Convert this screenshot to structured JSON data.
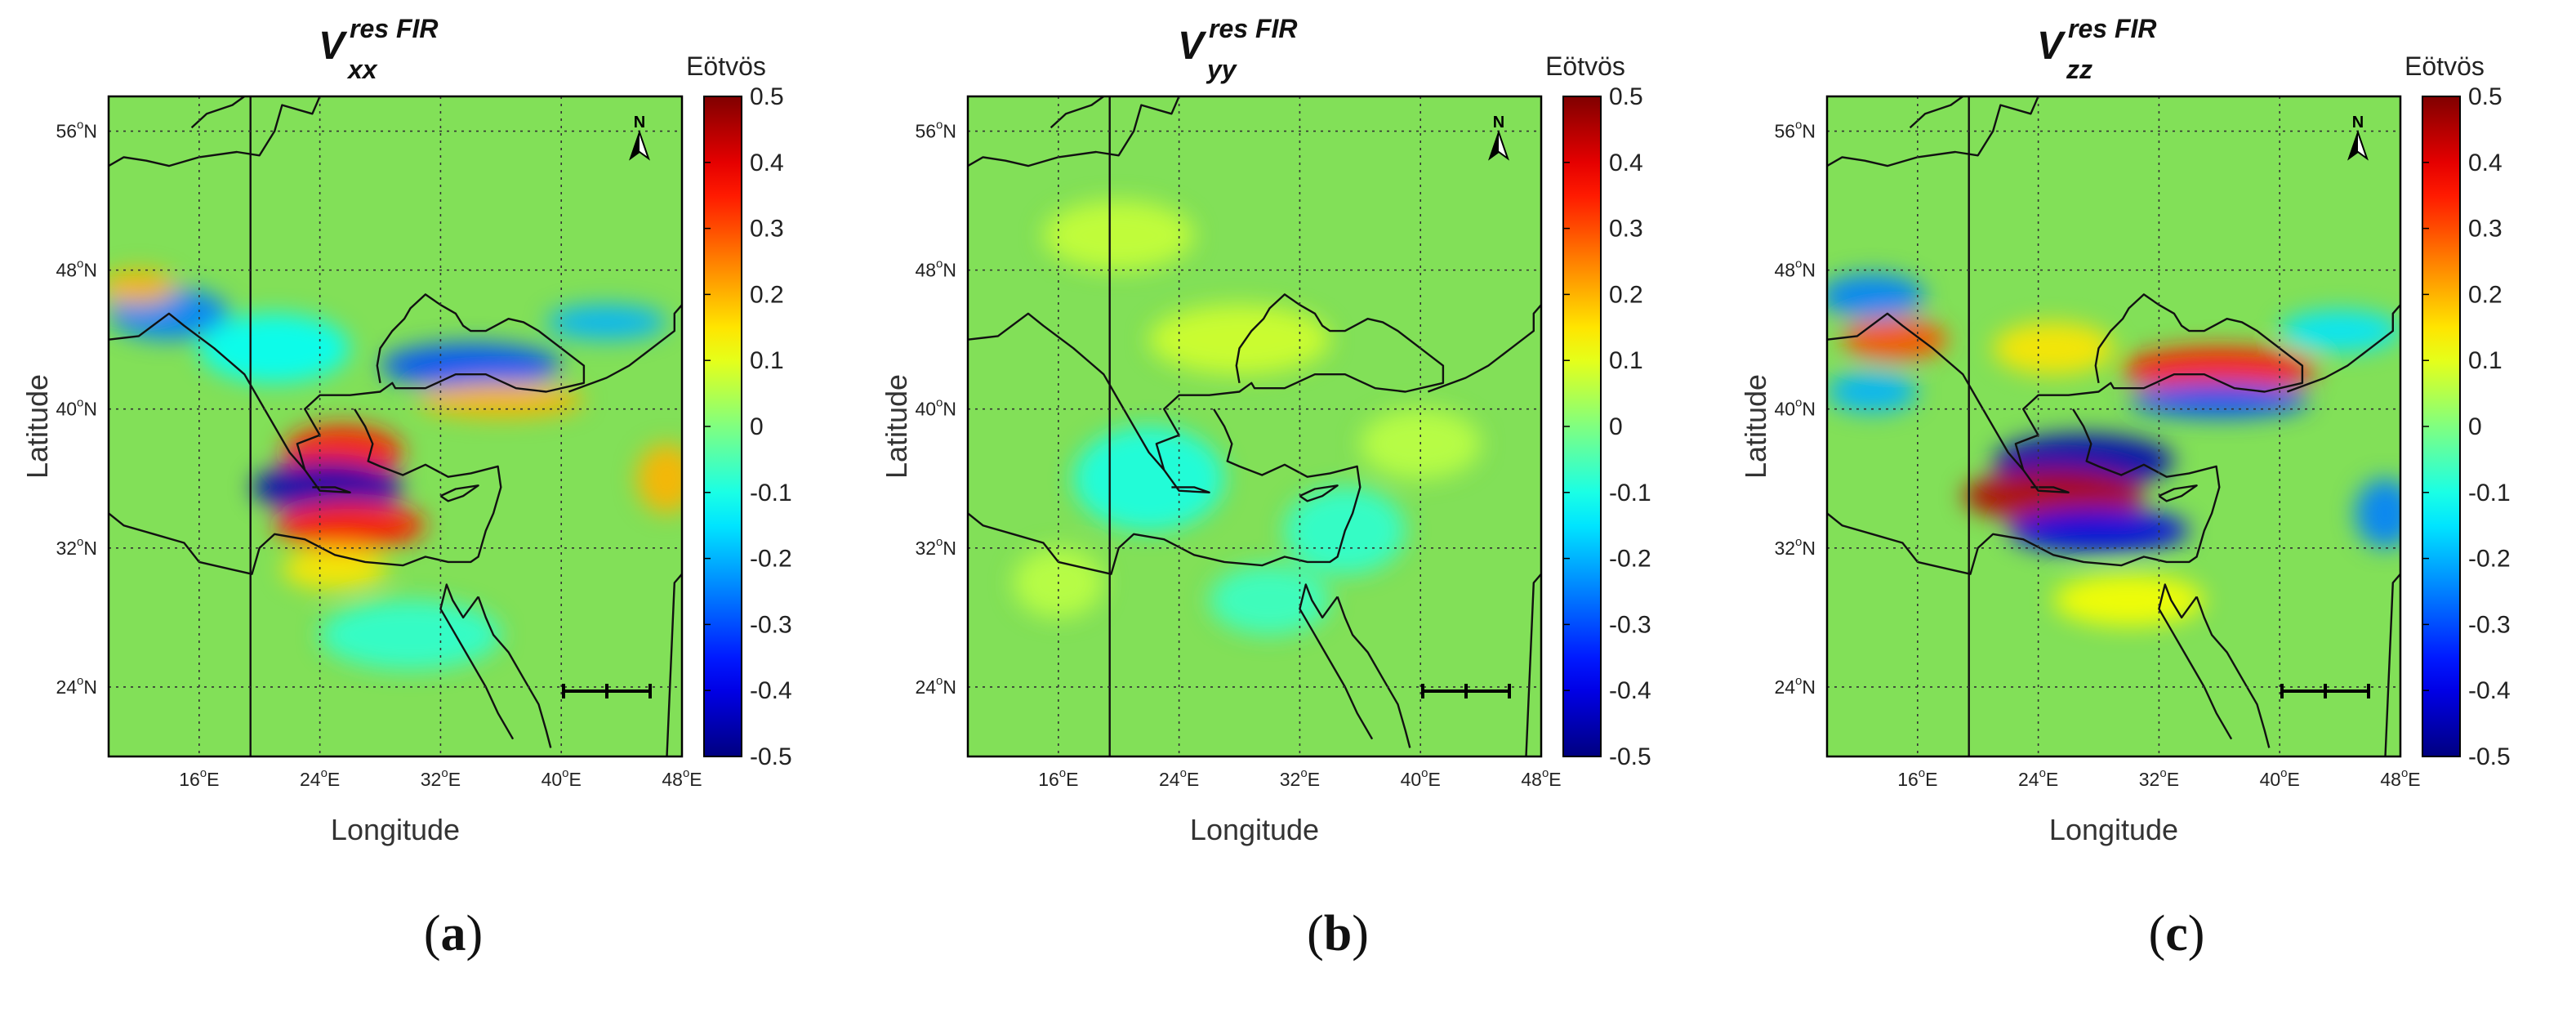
{
  "chart_data": [
    {
      "type": "heatmap",
      "caption": "a",
      "title": {
        "main": "V",
        "superscript": "res FIR",
        "subscript": "xx"
      },
      "xlabel": "Longitude",
      "ylabel": "Latitude",
      "xlim": [
        10,
        48
      ],
      "ylim": [
        20,
        58
      ],
      "x_ticks": [
        16,
        24,
        32,
        40,
        48
      ],
      "x_tick_labels": [
        {
          "deg": "16",
          "hemi": "E"
        },
        {
          "deg": "24",
          "hemi": "E"
        },
        {
          "deg": "32",
          "hemi": "E"
        },
        {
          "deg": "40",
          "hemi": "E"
        },
        {
          "deg": "48",
          "hemi": "E"
        }
      ],
      "y_ticks": [
        24,
        32,
        40,
        48,
        56
      ],
      "y_tick_labels": [
        {
          "deg": "24",
          "hemi": "N"
        },
        {
          "deg": "32",
          "hemi": "N"
        },
        {
          "deg": "40",
          "hemi": "N"
        },
        {
          "deg": "48",
          "hemi": "N"
        },
        {
          "deg": "56",
          "hemi": "N"
        }
      ],
      "grid": true,
      "colorbar": {
        "label": "Eötvös",
        "min": -0.5,
        "max": 0.5,
        "colormap": "jet",
        "ticks": [
          "0.5",
          "0.4",
          "0.3",
          "0.2",
          "0.1",
          "0",
          "-0.1",
          "-0.2",
          "-0.3",
          "-0.4",
          "-0.5"
        ]
      },
      "north_arrow": "N",
      "anomalies": [
        {
          "lon": 25.5,
          "lat": 37.5,
          "value": 0.35,
          "rx": 4.0,
          "ry": 1.6
        },
        {
          "lon": 24.5,
          "lat": 35.5,
          "value": -0.45,
          "rx": 5.0,
          "ry": 1.5
        },
        {
          "lon": 26.0,
          "lat": 33.3,
          "value": 0.35,
          "rx": 5.0,
          "ry": 1.4
        },
        {
          "lon": 25.0,
          "lat": 30.8,
          "value": 0.15,
          "rx": 3.5,
          "ry": 1.2
        },
        {
          "lon": 34.0,
          "lat": 42.5,
          "value": -0.3,
          "rx": 6.0,
          "ry": 1.3
        },
        {
          "lon": 36.0,
          "lat": 40.5,
          "value": 0.2,
          "rx": 5.5,
          "ry": 1.0
        },
        {
          "lon": 43.0,
          "lat": 45.0,
          "value": -0.2,
          "rx": 4.0,
          "ry": 1.0
        },
        {
          "lon": 14.0,
          "lat": 45.5,
          "value": -0.25,
          "rx": 4.0,
          "ry": 1.5
        },
        {
          "lon": 12.0,
          "lat": 47.0,
          "value": 0.2,
          "rx": 2.5,
          "ry": 1.0
        },
        {
          "lon": 47.0,
          "lat": 36.0,
          "value": 0.2,
          "rx": 2.0,
          "ry": 2.0
        },
        {
          "lon": 21.0,
          "lat": 43.5,
          "value": -0.12,
          "rx": 5.0,
          "ry": 2.0
        },
        {
          "lon": 30.0,
          "lat": 27.0,
          "value": -0.08,
          "rx": 6.0,
          "ry": 2.0
        }
      ]
    },
    {
      "type": "heatmap",
      "caption": "b",
      "title": {
        "main": "V",
        "superscript": "res FIR",
        "subscript": "yy"
      },
      "xlabel": "Longitude",
      "ylabel": "Latitude",
      "xlim": [
        10,
        48
      ],
      "ylim": [
        20,
        58
      ],
      "x_ticks": [
        16,
        24,
        32,
        40,
        48
      ],
      "x_tick_labels": [
        {
          "deg": "16",
          "hemi": "E"
        },
        {
          "deg": "24",
          "hemi": "E"
        },
        {
          "deg": "32",
          "hemi": "E"
        },
        {
          "deg": "40",
          "hemi": "E"
        },
        {
          "deg": "48",
          "hemi": "E"
        }
      ],
      "y_ticks": [
        24,
        32,
        40,
        48,
        56
      ],
      "y_tick_labels": [
        {
          "deg": "24",
          "hemi": "N"
        },
        {
          "deg": "32",
          "hemi": "N"
        },
        {
          "deg": "40",
          "hemi": "N"
        },
        {
          "deg": "48",
          "hemi": "N"
        },
        {
          "deg": "56",
          "hemi": "N"
        }
      ],
      "grid": true,
      "colorbar": {
        "label": "Eötvös",
        "min": -0.5,
        "max": 0.5,
        "colormap": "jet",
        "ticks": [
          "0.5",
          "0.4",
          "0.3",
          "0.2",
          "0.1",
          "0",
          "-0.1",
          "-0.2",
          "-0.3",
          "-0.4",
          "-0.5"
        ]
      },
      "north_arrow": "N",
      "anomalies": [
        {
          "lon": 22.0,
          "lat": 36.0,
          "value": -0.1,
          "rx": 5.0,
          "ry": 3.0
        },
        {
          "lon": 35.0,
          "lat": 33.0,
          "value": -0.08,
          "rx": 4.0,
          "ry": 2.5
        },
        {
          "lon": 30.0,
          "lat": 29.0,
          "value": -0.07,
          "rx": 4.0,
          "ry": 2.0
        },
        {
          "lon": 28.0,
          "lat": 44.0,
          "value": 0.08,
          "rx": 6.0,
          "ry": 2.0
        },
        {
          "lon": 20.0,
          "lat": 50.0,
          "value": 0.07,
          "rx": 5.0,
          "ry": 2.0
        },
        {
          "lon": 40.0,
          "lat": 38.0,
          "value": 0.06,
          "rx": 4.0,
          "ry": 2.0
        },
        {
          "lon": 16.0,
          "lat": 30.0,
          "value": 0.06,
          "rx": 3.0,
          "ry": 2.0
        }
      ]
    },
    {
      "type": "heatmap",
      "caption": "c",
      "title": {
        "main": "V",
        "superscript": "res FIR",
        "subscript": "zz"
      },
      "xlabel": "Longitude",
      "ylabel": "Latitude",
      "xlim": [
        10,
        48
      ],
      "ylim": [
        20,
        58
      ],
      "x_ticks": [
        16,
        24,
        32,
        40,
        48
      ],
      "x_tick_labels": [
        {
          "deg": "16",
          "hemi": "E"
        },
        {
          "deg": "24",
          "hemi": "E"
        },
        {
          "deg": "32",
          "hemi": "E"
        },
        {
          "deg": "40",
          "hemi": "E"
        },
        {
          "deg": "48",
          "hemi": "E"
        }
      ],
      "y_ticks": [
        24,
        32,
        40,
        48,
        56
      ],
      "y_tick_labels": [
        {
          "deg": "24",
          "hemi": "N"
        },
        {
          "deg": "32",
          "hemi": "N"
        },
        {
          "deg": "40",
          "hemi": "N"
        },
        {
          "deg": "48",
          "hemi": "N"
        },
        {
          "deg": "56",
          "hemi": "N"
        }
      ],
      "grid": true,
      "colorbar": {
        "label": "Eötvös",
        "min": -0.5,
        "max": 0.5,
        "colormap": "jet",
        "ticks": [
          "0.5",
          "0.4",
          "0.3",
          "0.2",
          "0.1",
          "0",
          "-0.1",
          "-0.2",
          "-0.3",
          "-0.4",
          "-0.5"
        ]
      },
      "north_arrow": "N",
      "anomalies": [
        {
          "lon": 27.0,
          "lat": 37.0,
          "value": -0.45,
          "rx": 6.0,
          "ry": 1.6
        },
        {
          "lon": 25.0,
          "lat": 35.0,
          "value": 0.45,
          "rx": 6.0,
          "ry": 1.5
        },
        {
          "lon": 28.0,
          "lat": 33.0,
          "value": -0.4,
          "rx": 6.0,
          "ry": 1.3
        },
        {
          "lon": 36.0,
          "lat": 42.3,
          "value": 0.35,
          "rx": 6.5,
          "ry": 1.3
        },
        {
          "lon": 36.0,
          "lat": 40.5,
          "value": -0.3,
          "rx": 6.0,
          "ry": 1.0
        },
        {
          "lon": 13.0,
          "lat": 46.5,
          "value": -0.25,
          "rx": 3.5,
          "ry": 1.3
        },
        {
          "lon": 14.5,
          "lat": 44.0,
          "value": 0.3,
          "rx": 3.5,
          "ry": 1.2
        },
        {
          "lon": 13.0,
          "lat": 41.0,
          "value": -0.2,
          "rx": 3.0,
          "ry": 1.2
        },
        {
          "lon": 44.0,
          "lat": 44.5,
          "value": -0.15,
          "rx": 4.0,
          "ry": 1.2
        },
        {
          "lon": 47.0,
          "lat": 34.0,
          "value": -0.25,
          "rx": 2.0,
          "ry": 2.0
        },
        {
          "lon": 25.0,
          "lat": 43.5,
          "value": 0.15,
          "rx": 4.0,
          "ry": 1.5
        },
        {
          "lon": 30.0,
          "lat": 29.0,
          "value": 0.12,
          "rx": 5.0,
          "ry": 1.5
        }
      ]
    }
  ],
  "colors": {
    "background_field": "#82e058",
    "coastline": "#111111",
    "grid": "#333333"
  },
  "coastline_paths": [
    [
      [
        10,
        44
      ],
      [
        12,
        44.2
      ],
      [
        14,
        45.5
      ],
      [
        15,
        44.8
      ],
      [
        17,
        43.5
      ],
      [
        19,
        42
      ],
      [
        20,
        40.5
      ],
      [
        21,
        39
      ],
      [
        22,
        37.5
      ],
      [
        23,
        36.5
      ],
      [
        22.5,
        38
      ],
      [
        24,
        38.5
      ],
      [
        23,
        40
      ],
      [
        24,
        40.8
      ],
      [
        26,
        40.8
      ],
      [
        28,
        41
      ],
      [
        28.8,
        41.5
      ],
      [
        29,
        41.2
      ],
      [
        31,
        41.2
      ],
      [
        33,
        42
      ],
      [
        35,
        42
      ],
      [
        37,
        41.2
      ],
      [
        39,
        41
      ],
      [
        41.5,
        41.5
      ],
      [
        41.5,
        42.5
      ],
      [
        40,
        43.5
      ],
      [
        38.5,
        44.5
      ],
      [
        37.5,
        45
      ],
      [
        36.5,
        45.2
      ],
      [
        35,
        44.5
      ],
      [
        34,
        44.5
      ],
      [
        33.5,
        44.8
      ],
      [
        33,
        45.5
      ],
      [
        32,
        46
      ],
      [
        31,
        46.6
      ],
      [
        30,
        45.8
      ],
      [
        29.6,
        45.2
      ],
      [
        28.8,
        44.5
      ],
      [
        28,
        43.5
      ],
      [
        27.8,
        42.5
      ],
      [
        28,
        41.5
      ]
    ],
    [
      [
        26.3,
        40
      ],
      [
        27,
        39
      ],
      [
        27.5,
        38
      ],
      [
        27.2,
        37
      ],
      [
        28,
        36.7
      ],
      [
        29.5,
        36.2
      ],
      [
        31,
        36.8
      ],
      [
        32.5,
        36.1
      ],
      [
        34,
        36.3
      ],
      [
        35.8,
        36.7
      ],
      [
        36,
        35.5
      ],
      [
        35.5,
        34
      ],
      [
        35,
        33
      ],
      [
        34.5,
        31.5
      ],
      [
        34,
        31.2
      ],
      [
        32.5,
        31.2
      ],
      [
        31,
        31.5
      ],
      [
        29.5,
        31
      ],
      [
        27,
        31.2
      ],
      [
        25,
        31.6
      ],
      [
        23,
        32.5
      ],
      [
        21,
        32.8
      ],
      [
        20,
        32
      ],
      [
        19.5,
        30.5
      ],
      [
        18,
        30.8
      ],
      [
        16,
        31.2
      ],
      [
        15,
        32.3
      ],
      [
        13,
        32.8
      ],
      [
        11,
        33.3
      ],
      [
        10,
        34
      ]
    ],
    [
      [
        34.5,
        29.2
      ],
      [
        33.5,
        28
      ],
      [
        32.8,
        29
      ],
      [
        32.4,
        29.9
      ],
      [
        32,
        28.5
      ],
      [
        33,
        27
      ],
      [
        34,
        25.5
      ],
      [
        35,
        24
      ],
      [
        35.8,
        22.5
      ],
      [
        36.8,
        21
      ]
    ],
    [
      [
        34.5,
        29.2
      ],
      [
        35,
        28
      ],
      [
        35.5,
        27
      ],
      [
        36.5,
        26
      ],
      [
        37.5,
        24.5
      ],
      [
        38.5,
        23
      ],
      [
        39,
        21.5
      ],
      [
        39.3,
        20.5
      ]
    ],
    [
      [
        19.4,
        20
      ],
      [
        19.4,
        58
      ]
    ],
    [
      [
        23,
        36.5
      ],
      [
        24,
        35.3
      ],
      [
        26,
        35.2
      ],
      [
        25,
        35.5
      ],
      [
        23.5,
        35.5
      ]
    ],
    [
      [
        32,
        35
      ],
      [
        33,
        35.4
      ],
      [
        34.5,
        35.6
      ],
      [
        33.5,
        35
      ],
      [
        32.5,
        34.7
      ],
      [
        32,
        35
      ]
    ],
    [
      [
        10,
        54
      ],
      [
        11,
        54.5
      ],
      [
        12.5,
        54.3
      ],
      [
        14,
        54
      ],
      [
        16,
        54.5
      ],
      [
        18.5,
        54.8
      ],
      [
        20,
        54.6
      ],
      [
        21,
        56
      ],
      [
        21.5,
        57.5
      ],
      [
        23.5,
        57
      ],
      [
        24,
        58
      ]
    ],
    [
      [
        15.5,
        56.2
      ],
      [
        16.5,
        57
      ],
      [
        18.2,
        57.5
      ],
      [
        19,
        58
      ]
    ],
    [
      [
        47,
        20
      ],
      [
        47.5,
        30
      ],
      [
        48,
        30.5
      ]
    ],
    [
      [
        40.5,
        41
      ],
      [
        43,
        41.8
      ],
      [
        44.5,
        42.5
      ],
      [
        46,
        43.5
      ],
      [
        47.5,
        44.5
      ],
      [
        47.5,
        45.5
      ],
      [
        48,
        46
      ]
    ]
  ]
}
